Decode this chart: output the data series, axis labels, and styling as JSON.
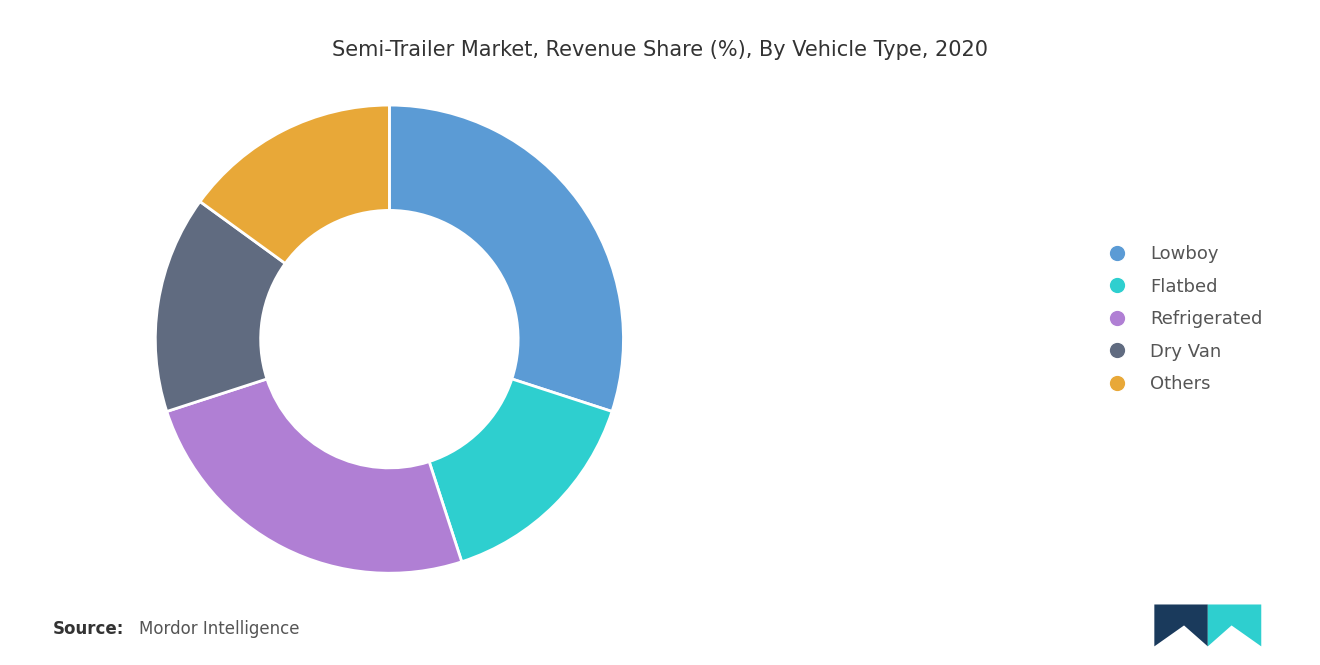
{
  "title": "Semi-Trailer Market, Revenue Share (%), By Vehicle Type, 2020",
  "labels": [
    "Lowboy",
    "Flatbed",
    "Refrigerated",
    "Dry Van",
    "Others"
  ],
  "values": [
    30,
    15,
    25,
    15,
    15
  ],
  "colors": [
    "#5B9BD5",
    "#2ECFCF",
    "#B07FD4",
    "#606B80",
    "#E8A838"
  ],
  "background_color": "#ffffff",
  "title_fontsize": 15,
  "legend_fontsize": 13,
  "source_bold": "Source:",
  "source_normal": "Mordor Intelligence",
  "donut_width": 0.45
}
